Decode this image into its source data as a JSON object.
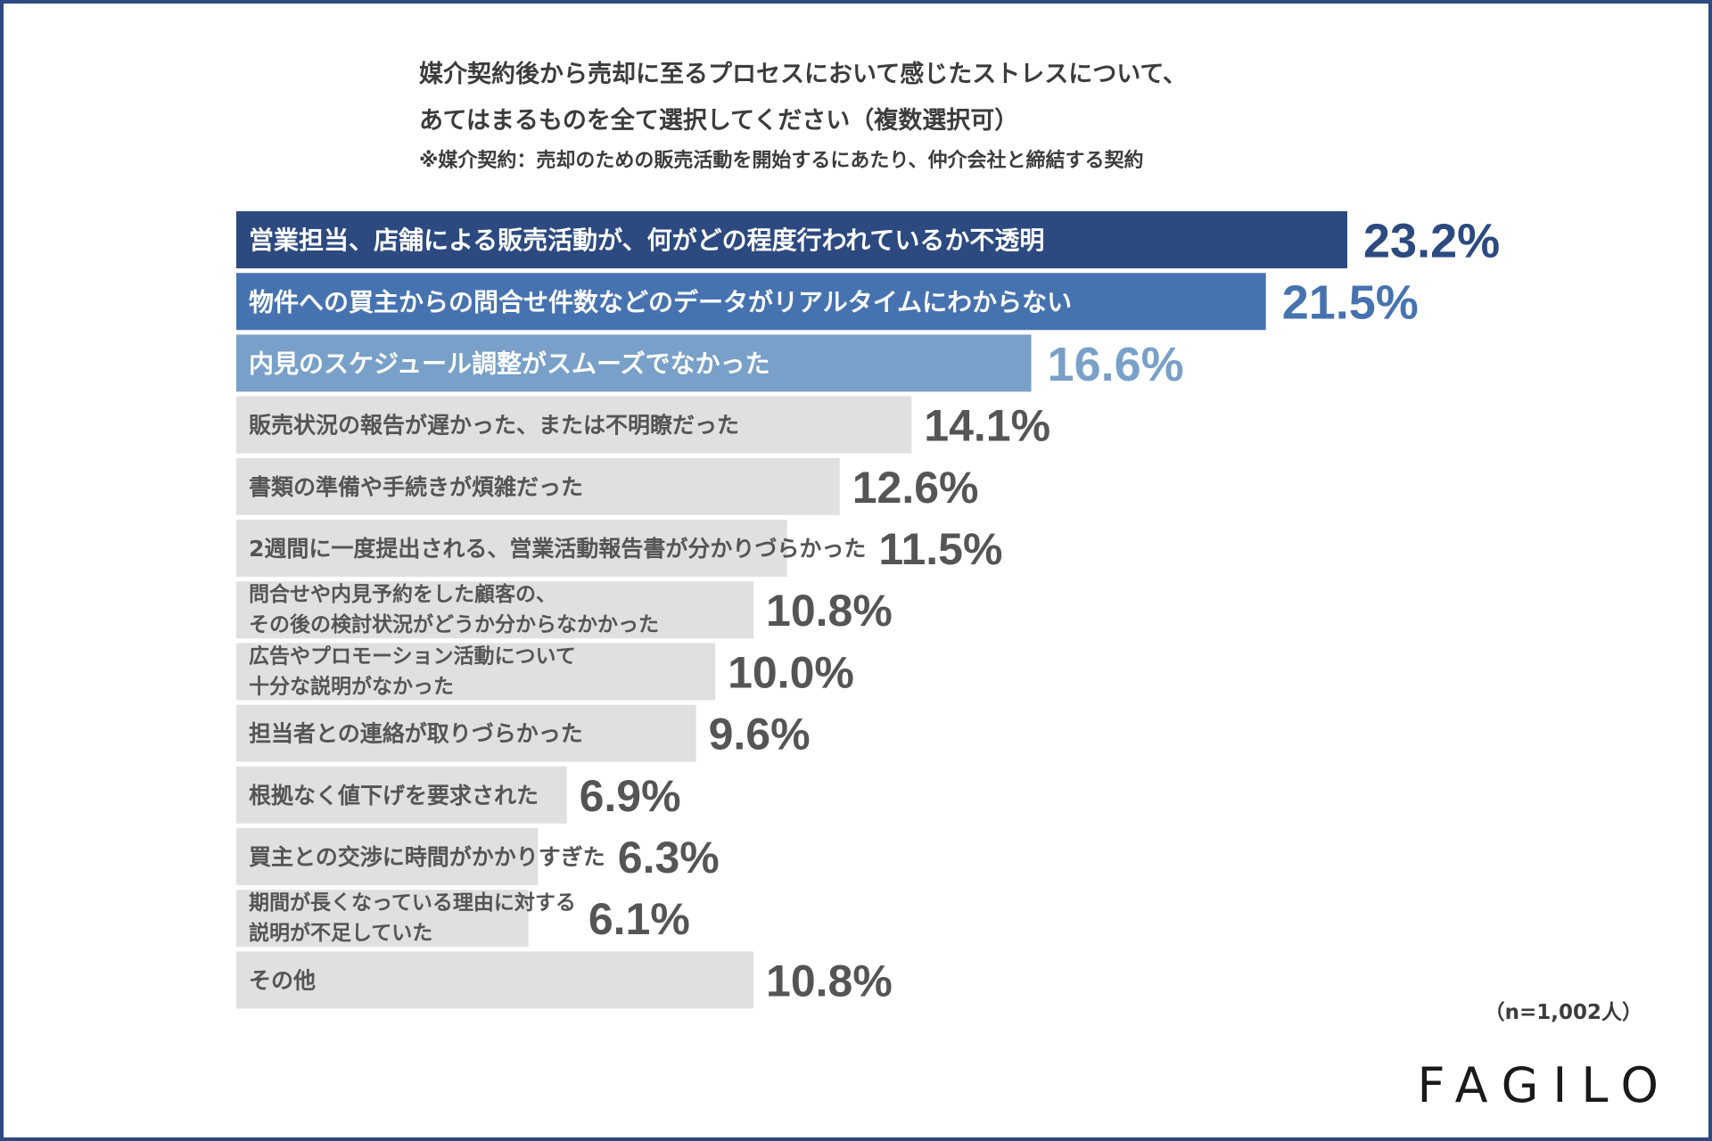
{
  "title": {
    "line1": "媒介契約後から売却に至るプロセスにおいて感じたストレスについて、",
    "line2": "あてはまるものを全て選択してください（複数選択可）",
    "note": "※媒介契約：売却のための販売活動を開始するにあたり、仲介会社と締結する契約"
  },
  "sample_size": "（n=1,002人）",
  "brand": "FAGILO",
  "colors": {
    "frame": "#2c4a80",
    "top1": "#2c4a80",
    "top2": "#4673b0",
    "top3": "#78a0c8",
    "other": "#e0e0e0",
    "dark_text": "#555555"
  },
  "chart_data": {
    "type": "bar",
    "orientation": "horizontal",
    "unit": "%",
    "xlim": [
      0,
      23.2
    ],
    "categories": [
      [
        "営業担当、店舗による販売活動が、何がどの程度行われているか不透明"
      ],
      [
        "物件への買主からの問合せ件数などのデータがリアルタイムにわからない"
      ],
      [
        "内見のスケジュール調整がスムーズでなかった"
      ],
      [
        "販売状況の報告が遅かった、または不明瞭だった"
      ],
      [
        "書類の準備や手続きが煩雑だった"
      ],
      [
        "2週間に一度提出される、営業活動報告書が分かりづらかった"
      ],
      [
        "問合せや内見予約をした顧客の、",
        "その後の検討状況がどうか分からなかかった"
      ],
      [
        "広告やプロモーション活動について",
        "十分な説明がなかった"
      ],
      [
        "担当者との連絡が取りづらかった"
      ],
      [
        "根拠なく値下げを要求された"
      ],
      [
        "買主との交渉に時間がかかりすぎた"
      ],
      [
        "期間が長くなっている理由に対する",
        "説明が不足していた"
      ],
      [
        "その他"
      ]
    ],
    "values": [
      23.2,
      21.5,
      16.6,
      14.1,
      12.6,
      11.5,
      10.8,
      10.0,
      9.6,
      6.9,
      6.3,
      6.1,
      10.8
    ],
    "value_labels": [
      "23.2%",
      "21.5%",
      "16.6%",
      "14.1%",
      "12.6%",
      "11.5%",
      "10.8%",
      "10.0%",
      "9.6%",
      "6.9%",
      "6.3%",
      "6.1%",
      "10.8%"
    ],
    "highlight_top": 3
  }
}
